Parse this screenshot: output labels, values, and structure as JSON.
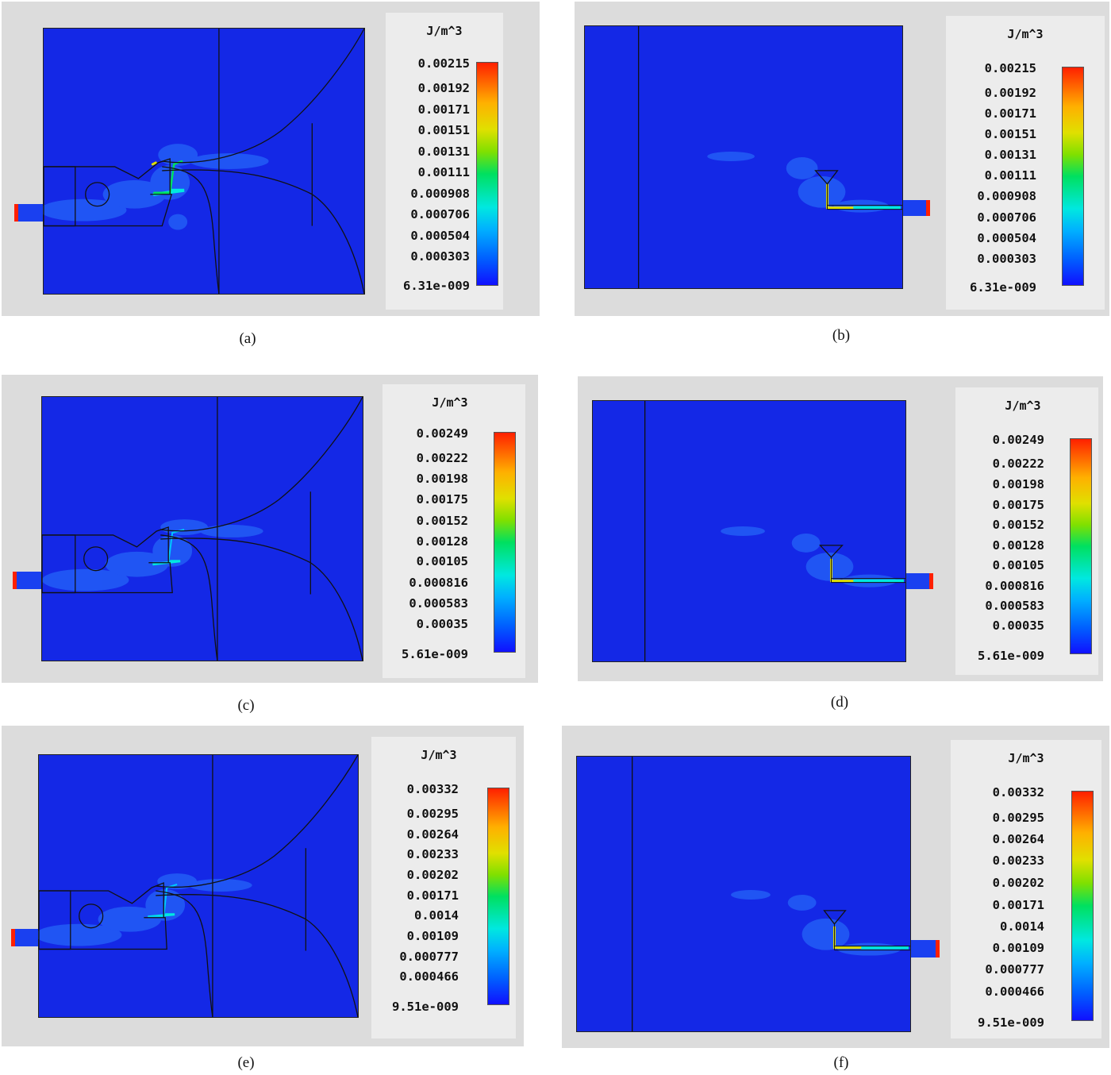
{
  "figure": {
    "panels": [
      {
        "caption": "(a)",
        "unit": "J/m^3",
        "ticks": [
          "0.00215",
          "0.00192",
          "0.00171",
          "0.00151",
          "0.00131",
          "0.00111",
          "0.000908",
          "0.000706",
          "0.000504",
          "0.000303",
          "6.31e-009"
        ],
        "view": "top"
      },
      {
        "caption": "(b)",
        "unit": "J/m^3",
        "ticks": [
          "0.00215",
          "0.00192",
          "0.00171",
          "0.00151",
          "0.00131",
          "0.00111",
          "0.000908",
          "0.000706",
          "0.000504",
          "0.000303",
          "6.31e-009"
        ],
        "view": "side"
      },
      {
        "caption": "(c)",
        "unit": "J/m^3",
        "ticks": [
          "0.00249",
          "0.00222",
          "0.00198",
          "0.00175",
          "0.00152",
          "0.00128",
          "0.00105",
          "0.000816",
          "0.000583",
          "0.00035",
          "5.61e-009"
        ],
        "view": "top"
      },
      {
        "caption": "(d)",
        "unit": "J/m^3",
        "ticks": [
          "0.00249",
          "0.00222",
          "0.00198",
          "0.00175",
          "0.00152",
          "0.00128",
          "0.00105",
          "0.000816",
          "0.000583",
          "0.00035",
          "5.61e-009"
        ],
        "view": "side"
      },
      {
        "caption": "(e)",
        "unit": "J/m^3",
        "ticks": [
          "0.00332",
          "0.00295",
          "0.00264",
          "0.00233",
          "0.00202",
          "0.00171",
          "0.0014",
          "0.00109",
          "0.000777",
          "0.000466",
          "9.51e-009"
        ],
        "view": "top"
      },
      {
        "caption": "(f)",
        "unit": "J/m^3",
        "ticks": [
          "0.00332",
          "0.00295",
          "0.00264",
          "0.00233",
          "0.00202",
          "0.00171",
          "0.0014",
          "0.00109",
          "0.000777",
          "0.000466",
          "9.51e-009"
        ],
        "view": "side"
      }
    ],
    "colors": {
      "background": "#1428e6",
      "hot": "#ff2000",
      "glow": "#2a7aff",
      "cyan": "#00e8e0",
      "yellow": "#e0e000",
      "outline": "#111111"
    }
  }
}
